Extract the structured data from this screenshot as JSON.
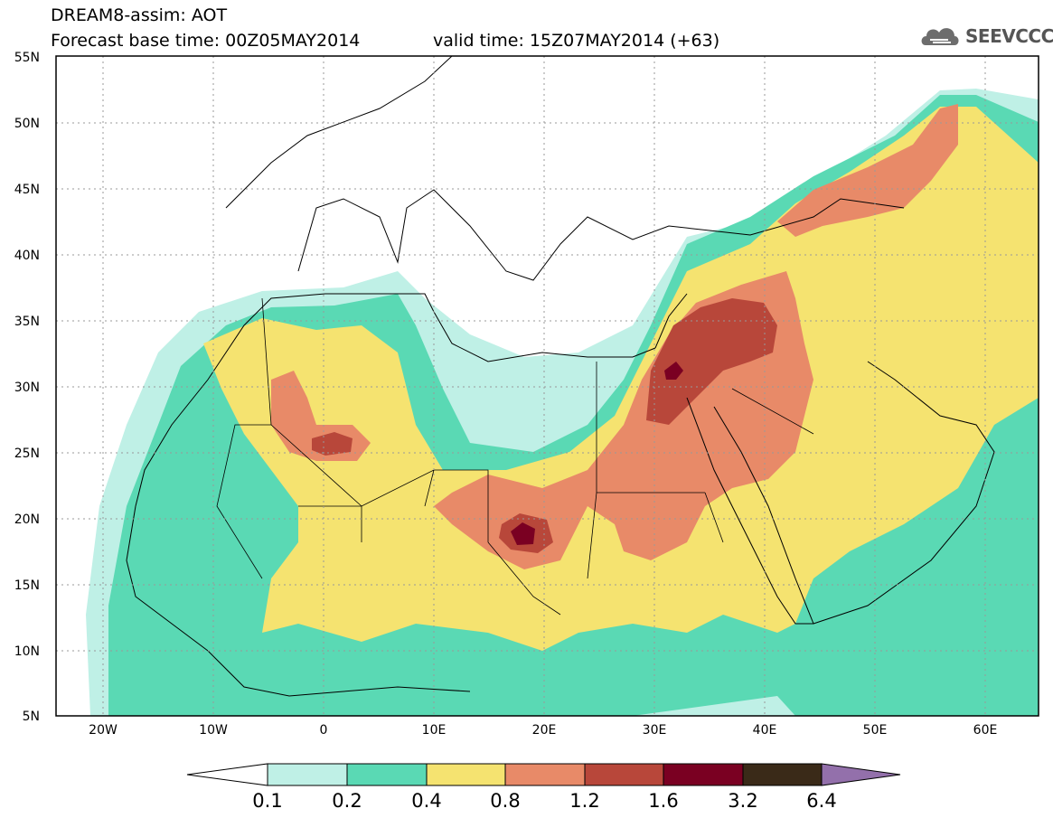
{
  "header": {
    "line1": "DREAM8-assim: AOT",
    "base_time": "Forecast base time: 00Z05MAY2014",
    "valid_time": "valid time: 15Z07MAY2014 (+63)"
  },
  "logo": {
    "text": "SEEVCCC",
    "icon": "cloud-icon"
  },
  "map": {
    "lat_labels": [
      "55N",
      "50N",
      "45N",
      "40N",
      "35N",
      "30N",
      "25N",
      "20N",
      "15N",
      "10N",
      "5N"
    ],
    "lon_labels": [
      "20W",
      "10W",
      "0",
      "10E",
      "20E",
      "30E",
      "40E",
      "50E",
      "60E"
    ]
  },
  "colorbar": {
    "labels": [
      "0.1",
      "0.2",
      "0.4",
      "0.8",
      "1.2",
      "1.6",
      "3.2",
      "6.4"
    ],
    "colors": [
      "#ffffff",
      "#bff0e6",
      "#5ad9b4",
      "#f5e370",
      "#e88a68",
      "#b8473a",
      "#7a0022",
      "#3a2a18",
      "#9370ab"
    ]
  },
  "colors": {
    "aot_0_1": "#bff0e6",
    "aot_0_2": "#5ad9b4",
    "aot_0_4": "#f5e370",
    "aot_0_8": "#e88a68",
    "aot_1_2": "#b8473a",
    "aot_1_6": "#7a0022",
    "aot_3_2": "#3a2a18",
    "aot_6_4": "#9370ab"
  }
}
